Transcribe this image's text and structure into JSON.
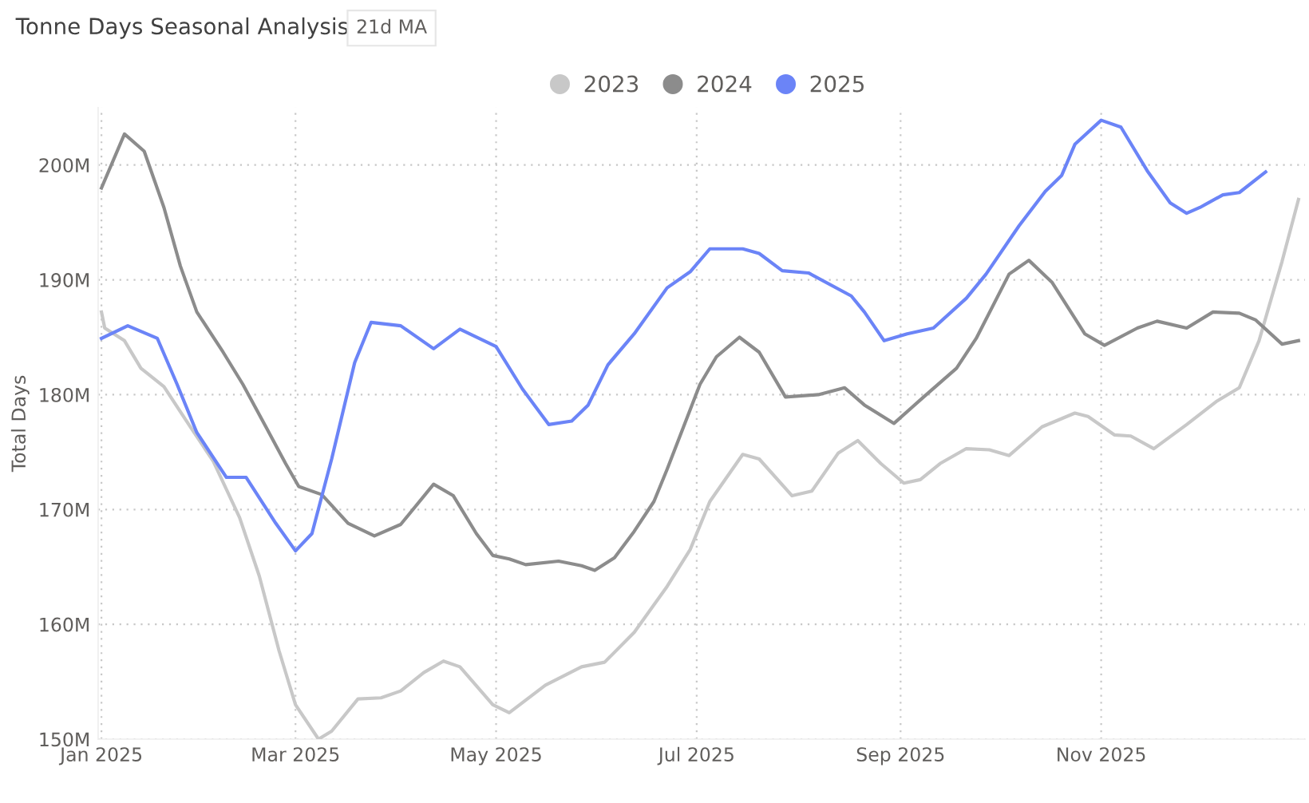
{
  "chart_data": {
    "type": "line",
    "title": "Tonne Days Seasonal Analysis",
    "annotations": [
      "21d MA"
    ],
    "ylabel": "Total Days",
    "xlim": [
      "2024-12-31",
      "2026-01-02"
    ],
    "xticks": [
      {
        "value": "2025-01-01",
        "label": "Jan 2025"
      },
      {
        "value": "2025-03-01",
        "label": "Mar 2025"
      },
      {
        "value": "2025-05-01",
        "label": "May 2025"
      },
      {
        "value": "2025-07-01",
        "label": "Jul 2025"
      },
      {
        "value": "2025-09-01",
        "label": "Sep 2025"
      },
      {
        "value": "2025-11-01",
        "label": "Nov 2025"
      }
    ],
    "ylim": [
      150,
      205
    ],
    "yticks": [
      {
        "value": 150,
        "label": "150M"
      },
      {
        "value": 160,
        "label": "160M"
      },
      {
        "value": 170,
        "label": "170M"
      },
      {
        "value": 180,
        "label": "180M"
      },
      {
        "value": 190,
        "label": "190M"
      },
      {
        "value": 200,
        "label": "200M"
      }
    ],
    "grid": true,
    "legend": "top",
    "line_style": "solid",
    "marker": "none",
    "series": [
      {
        "name": "2023",
        "color": "#c8c8c8",
        "x": [
          "2025-01-01",
          "2025-01-02",
          "2025-01-08",
          "2025-01-13",
          "2025-01-20",
          "2025-01-28",
          "2025-02-04",
          "2025-02-12",
          "2025-02-18",
          "2025-02-24",
          "2025-03-01",
          "2025-03-08",
          "2025-03-12",
          "2025-03-20",
          "2025-03-27",
          "2025-04-02",
          "2025-04-09",
          "2025-04-15",
          "2025-04-20",
          "2025-04-30",
          "2025-05-05",
          "2025-05-16",
          "2025-05-27",
          "2025-06-03",
          "2025-06-12",
          "2025-06-22",
          "2025-06-29",
          "2025-07-05",
          "2025-07-15",
          "2025-07-20",
          "2025-07-30",
          "2025-08-05",
          "2025-08-13",
          "2025-08-19",
          "2025-08-26",
          "2025-09-02",
          "2025-09-07",
          "2025-09-13",
          "2025-09-21",
          "2025-09-28",
          "2025-10-04",
          "2025-10-14",
          "2025-10-24",
          "2025-10-28",
          "2025-11-05",
          "2025-11-10",
          "2025-11-17",
          "2025-11-27",
          "2025-12-06",
          "2025-12-13",
          "2025-12-19",
          "2025-12-26",
          "2025-12-31"
        ],
        "values": [
          187.2,
          185.8,
          184.7,
          182.3,
          180.7,
          177.2,
          174.2,
          169.3,
          164.2,
          157.7,
          153.0,
          150.0,
          150.7,
          153.5,
          153.6,
          154.2,
          155.8,
          156.8,
          156.3,
          153.0,
          152.3,
          154.7,
          156.3,
          156.7,
          159.3,
          163.3,
          166.5,
          170.7,
          174.8,
          174.4,
          171.2,
          171.6,
          174.9,
          176.0,
          174.0,
          172.3,
          172.6,
          174.0,
          175.3,
          175.2,
          174.7,
          177.2,
          178.4,
          178.1,
          176.5,
          176.4,
          175.3,
          177.4,
          179.4,
          180.6,
          184.7,
          191.6,
          197.0
        ]
      },
      {
        "name": "2024",
        "color": "#8c8c8c",
        "x": [
          "2025-01-01",
          "2025-01-08",
          "2025-01-14",
          "2025-01-20",
          "2025-01-25",
          "2025-01-30",
          "2025-02-07",
          "2025-02-13",
          "2025-02-20",
          "2025-02-26",
          "2025-03-02",
          "2025-03-09",
          "2025-03-17",
          "2025-03-25",
          "2025-04-02",
          "2025-04-12",
          "2025-04-18",
          "2025-04-25",
          "2025-04-30",
          "2025-05-05",
          "2025-05-10",
          "2025-05-20",
          "2025-05-27",
          "2025-05-31",
          "2025-06-06",
          "2025-06-12",
          "2025-06-18",
          "2025-06-22",
          "2025-07-02",
          "2025-07-07",
          "2025-07-14",
          "2025-07-20",
          "2025-07-28",
          "2025-08-07",
          "2025-08-15",
          "2025-08-21",
          "2025-08-30",
          "2025-09-08",
          "2025-09-18",
          "2025-09-24",
          "2025-10-04",
          "2025-10-10",
          "2025-10-17",
          "2025-10-27",
          "2025-11-02",
          "2025-11-12",
          "2025-11-18",
          "2025-11-27",
          "2025-12-05",
          "2025-12-13",
          "2025-12-18",
          "2025-12-26",
          "2025-12-31"
        ],
        "values": [
          198.0,
          202.7,
          201.2,
          196.3,
          191.2,
          187.2,
          183.7,
          180.9,
          177.2,
          174.0,
          172.0,
          171.3,
          168.8,
          167.7,
          168.7,
          172.2,
          171.2,
          167.9,
          166.0,
          165.7,
          165.2,
          165.5,
          165.1,
          164.7,
          165.8,
          168.1,
          170.7,
          173.5,
          180.9,
          183.3,
          185.0,
          183.7,
          179.8,
          180.0,
          180.6,
          179.1,
          177.5,
          179.8,
          182.3,
          184.9,
          190.5,
          191.7,
          189.8,
          185.3,
          184.3,
          185.8,
          186.4,
          185.8,
          187.2,
          187.1,
          186.5,
          184.4,
          184.7
        ]
      },
      {
        "name": "2025",
        "color": "#6b84f7",
        "x": [
          "2025-01-01",
          "2025-01-09",
          "2025-01-18",
          "2025-01-24",
          "2025-01-30",
          "2025-02-08",
          "2025-02-14",
          "2025-02-23",
          "2025-03-01",
          "2025-03-06",
          "2025-03-12",
          "2025-03-19",
          "2025-03-24",
          "2025-04-02",
          "2025-04-12",
          "2025-04-20",
          "2025-05-01",
          "2025-05-09",
          "2025-05-17",
          "2025-05-24",
          "2025-05-29",
          "2025-06-04",
          "2025-06-12",
          "2025-06-22",
          "2025-06-29",
          "2025-07-05",
          "2025-07-15",
          "2025-07-20",
          "2025-07-27",
          "2025-08-04",
          "2025-08-17",
          "2025-08-21",
          "2025-08-27",
          "2025-09-03",
          "2025-09-11",
          "2025-09-21",
          "2025-09-27",
          "2025-10-07",
          "2025-10-15",
          "2025-10-20",
          "2025-10-24",
          "2025-11-01",
          "2025-11-07",
          "2025-11-15",
          "2025-11-22",
          "2025-11-27",
          "2025-12-01",
          "2025-12-08",
          "2025-12-13",
          "2025-12-21"
        ],
        "values": [
          184.9,
          186.0,
          184.9,
          180.9,
          176.7,
          172.8,
          172.8,
          168.8,
          166.4,
          167.9,
          174.4,
          182.8,
          186.3,
          186.0,
          184.0,
          185.7,
          184.2,
          180.5,
          177.4,
          177.7,
          179.1,
          182.6,
          185.3,
          189.3,
          190.7,
          192.7,
          192.7,
          192.3,
          190.8,
          190.6,
          188.6,
          187.2,
          184.7,
          185.3,
          185.8,
          188.4,
          190.5,
          194.7,
          197.7,
          199.1,
          201.8,
          203.9,
          203.3,
          199.5,
          196.7,
          195.8,
          196.3,
          197.4,
          197.6,
          199.4
        ]
      }
    ]
  }
}
